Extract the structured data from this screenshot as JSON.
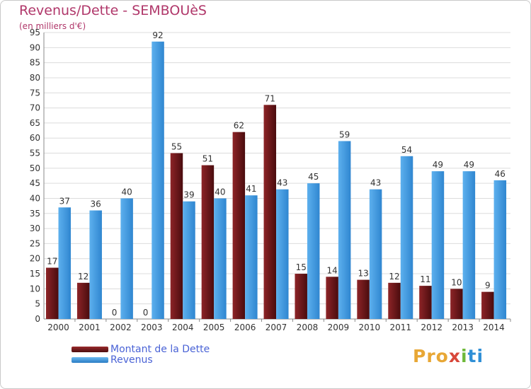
{
  "chart_data": {
    "type": "bar",
    "title": "Revenus/Dette - SEMBOUèS",
    "subtitle": "(en milliers d'€)",
    "categories": [
      "2000",
      "2001",
      "2002",
      "2003",
      "2004",
      "2005",
      "2006",
      "2007",
      "2008",
      "2009",
      "2010",
      "2011",
      "2012",
      "2013",
      "2014"
    ],
    "series": [
      {
        "name": "Montant de la Dette",
        "color": "#7a1b1d",
        "values": [
          17,
          12,
          0,
          0,
          55,
          51,
          62,
          71,
          15,
          14,
          13,
          12,
          11,
          10,
          9
        ]
      },
      {
        "name": "Revenus",
        "color": "#3e9be0",
        "values": [
          37,
          36,
          40,
          92,
          39,
          40,
          41,
          43,
          45,
          59,
          43,
          54,
          49,
          49,
          46
        ]
      }
    ],
    "ylim": [
      0,
      95
    ],
    "yticks": [
      0,
      5,
      10,
      15,
      20,
      25,
      30,
      35,
      40,
      45,
      50,
      55,
      60,
      65,
      70,
      75,
      80,
      85,
      90,
      95
    ],
    "grid": true,
    "legend_position": "bottom-left"
  },
  "logo": {
    "part1": "Pro",
    "part2": "x",
    "part3": "i",
    "part4": "ti"
  }
}
